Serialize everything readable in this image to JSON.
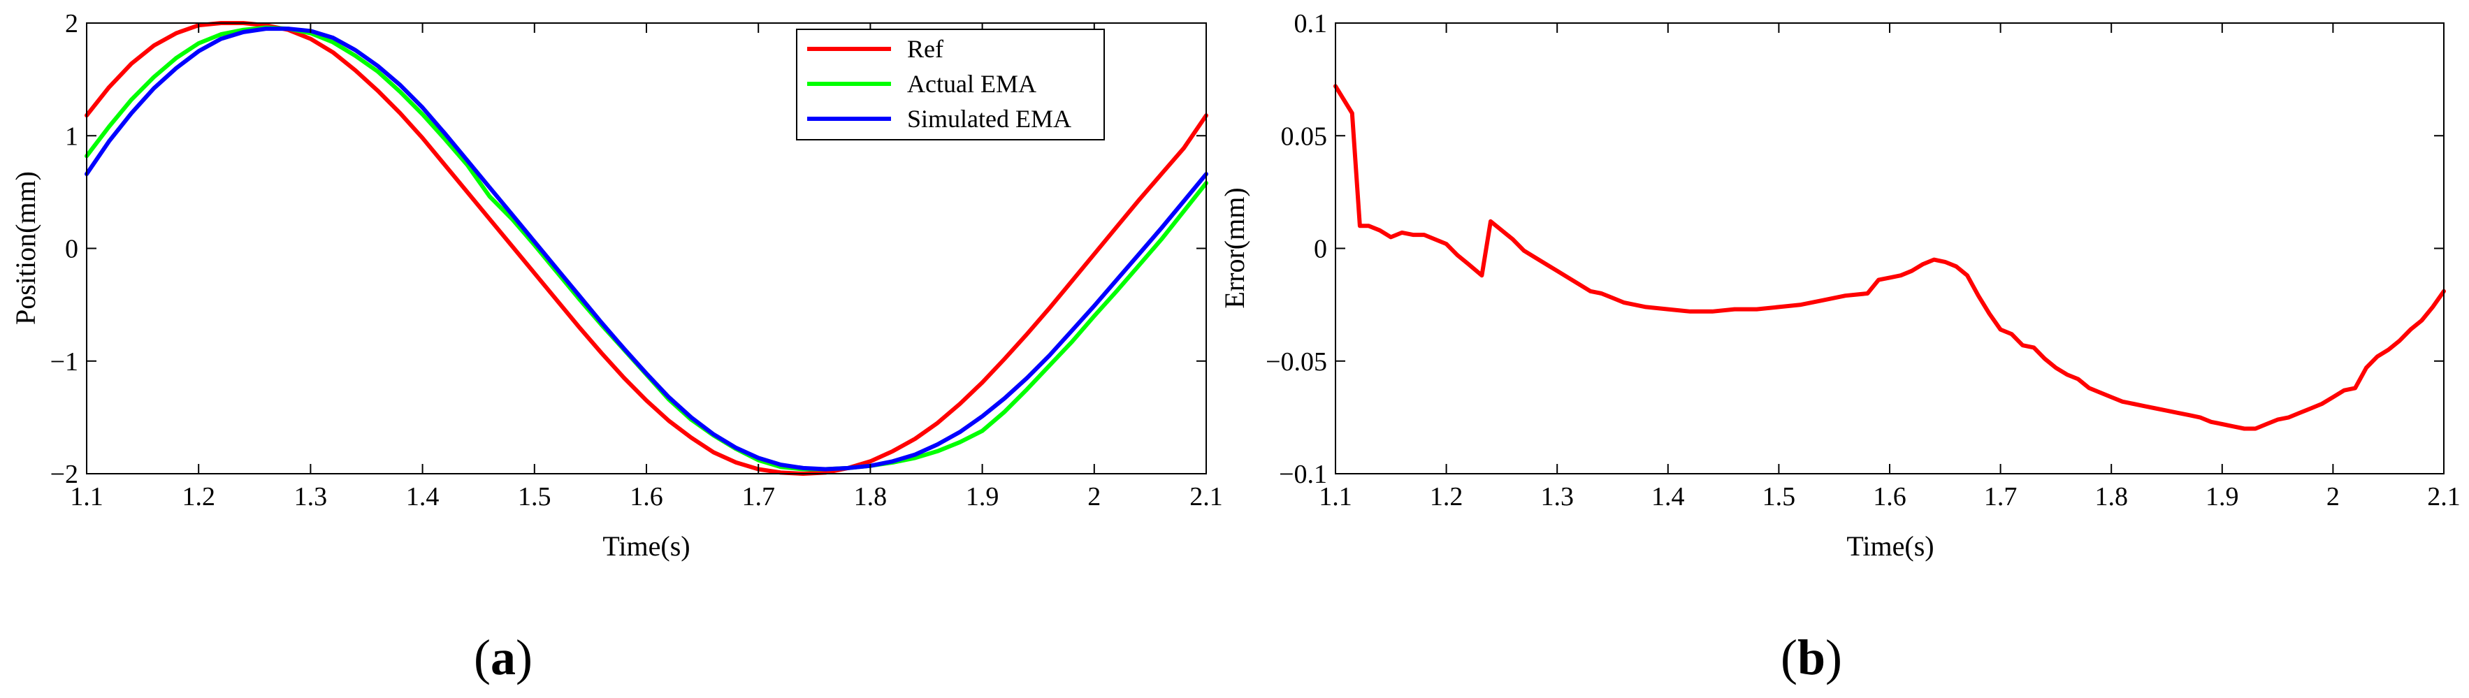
{
  "chart_data": [
    {
      "id": "a",
      "type": "line",
      "panel_label": {
        "open": "(",
        "letter": "a",
        "close": ")"
      },
      "title": "",
      "xlabel": "Time(s)",
      "ylabel": "Position(mm)",
      "xlim": [
        1.1,
        2.1
      ],
      "ylim": [
        -2,
        2
      ],
      "xticks": [
        1.1,
        1.2,
        1.3,
        1.4,
        1.5,
        1.6,
        1.7,
        1.8,
        1.9,
        2,
        2.1
      ],
      "xtick_labels": [
        "1.1",
        "1.2",
        "1.3",
        "1.4",
        "1.5",
        "1.6",
        "1.7",
        "1.8",
        "1.9",
        "2",
        "2.1"
      ],
      "yticks": [
        -2,
        -1,
        0,
        1,
        2
      ],
      "ytick_labels": [
        "−2",
        "−1",
        "0",
        "1",
        "2"
      ],
      "grid": false,
      "legend_position": "top-right",
      "series": [
        {
          "name": "Ref",
          "color": "#ff0000",
          "points": [
            [
              1.1,
              1.18
            ],
            [
              1.12,
              1.43
            ],
            [
              1.14,
              1.64
            ],
            [
              1.16,
              1.8
            ],
            [
              1.18,
              1.91
            ],
            [
              1.2,
              1.98
            ],
            [
              1.22,
              2.0
            ],
            [
              1.24,
              2.0
            ],
            [
              1.26,
              1.98
            ],
            [
              1.28,
              1.94
            ],
            [
              1.3,
              1.86
            ],
            [
              1.32,
              1.74
            ],
            [
              1.34,
              1.58
            ],
            [
              1.36,
              1.4
            ],
            [
              1.38,
              1.2
            ],
            [
              1.4,
              0.98
            ],
            [
              1.42,
              0.74
            ],
            [
              1.44,
              0.5
            ],
            [
              1.46,
              0.26
            ],
            [
              1.48,
              0.02
            ],
            [
              1.5,
              -0.22
            ],
            [
              1.52,
              -0.46
            ],
            [
              1.54,
              -0.7
            ],
            [
              1.56,
              -0.93
            ],
            [
              1.58,
              -1.15
            ],
            [
              1.6,
              -1.35
            ],
            [
              1.62,
              -1.53
            ],
            [
              1.64,
              -1.68
            ],
            [
              1.66,
              -1.81
            ],
            [
              1.68,
              -1.9
            ],
            [
              1.7,
              -1.96
            ],
            [
              1.72,
              -1.99
            ],
            [
              1.74,
              -2.0
            ],
            [
              1.76,
              -1.99
            ],
            [
              1.78,
              -1.95
            ],
            [
              1.8,
              -1.89
            ],
            [
              1.82,
              -1.8
            ],
            [
              1.84,
              -1.69
            ],
            [
              1.86,
              -1.55
            ],
            [
              1.88,
              -1.38
            ],
            [
              1.9,
              -1.19
            ],
            [
              1.92,
              -0.98
            ],
            [
              1.94,
              -0.76
            ],
            [
              1.96,
              -0.53
            ],
            [
              1.98,
              -0.29
            ],
            [
              2.0,
              -0.05
            ],
            [
              2.02,
              0.19
            ],
            [
              2.04,
              0.43
            ],
            [
              2.06,
              0.66
            ],
            [
              2.08,
              0.89
            ],
            [
              2.1,
              1.18
            ]
          ]
        },
        {
          "name": "Actual EMA",
          "color": "#00ff00",
          "points": [
            [
              1.1,
              0.82
            ],
            [
              1.12,
              1.08
            ],
            [
              1.14,
              1.32
            ],
            [
              1.16,
              1.52
            ],
            [
              1.18,
              1.69
            ],
            [
              1.2,
              1.82
            ],
            [
              1.22,
              1.9
            ],
            [
              1.24,
              1.94
            ],
            [
              1.26,
              1.96
            ],
            [
              1.28,
              1.95
            ],
            [
              1.3,
              1.91
            ],
            [
              1.32,
              1.83
            ],
            [
              1.34,
              1.71
            ],
            [
              1.36,
              1.57
            ],
            [
              1.38,
              1.39
            ],
            [
              1.4,
              1.19
            ],
            [
              1.42,
              0.97
            ],
            [
              1.44,
              0.74
            ],
            [
              1.46,
              0.46
            ],
            [
              1.48,
              0.26
            ],
            [
              1.5,
              0.03
            ],
            [
              1.52,
              -0.21
            ],
            [
              1.54,
              -0.45
            ],
            [
              1.56,
              -0.68
            ],
            [
              1.58,
              -0.9
            ],
            [
              1.6,
              -1.12
            ],
            [
              1.62,
              -1.34
            ],
            [
              1.64,
              -1.52
            ],
            [
              1.66,
              -1.66
            ],
            [
              1.68,
              -1.78
            ],
            [
              1.7,
              -1.88
            ],
            [
              1.72,
              -1.94
            ],
            [
              1.74,
              -1.96
            ],
            [
              1.76,
              -1.96
            ],
            [
              1.78,
              -1.95
            ],
            [
              1.8,
              -1.93
            ],
            [
              1.82,
              -1.9
            ],
            [
              1.84,
              -1.86
            ],
            [
              1.86,
              -1.8
            ],
            [
              1.88,
              -1.72
            ],
            [
              1.9,
              -1.62
            ],
            [
              1.92,
              -1.45
            ],
            [
              1.94,
              -1.25
            ],
            [
              1.96,
              -1.04
            ],
            [
              1.98,
              -0.83
            ],
            [
              2.0,
              -0.6
            ],
            [
              2.02,
              -0.38
            ],
            [
              2.04,
              -0.15
            ],
            [
              2.06,
              0.08
            ],
            [
              2.08,
              0.33
            ],
            [
              2.1,
              0.58
            ]
          ]
        },
        {
          "name": "Simulated EMA",
          "color": "#0000ff",
          "points": [
            [
              1.1,
              0.66
            ],
            [
              1.12,
              0.95
            ],
            [
              1.14,
              1.2
            ],
            [
              1.16,
              1.42
            ],
            [
              1.18,
              1.6
            ],
            [
              1.2,
              1.75
            ],
            [
              1.22,
              1.86
            ],
            [
              1.24,
              1.92
            ],
            [
              1.26,
              1.95
            ],
            [
              1.28,
              1.95
            ],
            [
              1.3,
              1.93
            ],
            [
              1.32,
              1.87
            ],
            [
              1.34,
              1.76
            ],
            [
              1.36,
              1.62
            ],
            [
              1.38,
              1.45
            ],
            [
              1.4,
              1.25
            ],
            [
              1.42,
              1.02
            ],
            [
              1.44,
              0.78
            ],
            [
              1.46,
              0.54
            ],
            [
              1.48,
              0.3
            ],
            [
              1.5,
              0.06
            ],
            [
              1.52,
              -0.18
            ],
            [
              1.54,
              -0.42
            ],
            [
              1.56,
              -0.66
            ],
            [
              1.58,
              -0.89
            ],
            [
              1.6,
              -1.11
            ],
            [
              1.62,
              -1.32
            ],
            [
              1.64,
              -1.5
            ],
            [
              1.66,
              -1.65
            ],
            [
              1.68,
              -1.77
            ],
            [
              1.7,
              -1.86
            ],
            [
              1.72,
              -1.92
            ],
            [
              1.74,
              -1.95
            ],
            [
              1.76,
              -1.96
            ],
            [
              1.78,
              -1.95
            ],
            [
              1.8,
              -1.93
            ],
            [
              1.82,
              -1.89
            ],
            [
              1.84,
              -1.83
            ],
            [
              1.86,
              -1.74
            ],
            [
              1.88,
              -1.63
            ],
            [
              1.9,
              -1.49
            ],
            [
              1.92,
              -1.33
            ],
            [
              1.94,
              -1.15
            ],
            [
              1.96,
              -0.95
            ],
            [
              1.98,
              -0.73
            ],
            [
              2.0,
              -0.51
            ],
            [
              2.02,
              -0.28
            ],
            [
              2.04,
              -0.05
            ],
            [
              2.06,
              0.18
            ],
            [
              2.08,
              0.42
            ],
            [
              2.1,
              0.66
            ]
          ]
        }
      ]
    },
    {
      "id": "b",
      "type": "line",
      "panel_label": {
        "open": "(",
        "letter": "b",
        "close": ")"
      },
      "title": "",
      "xlabel": "Time(s)",
      "ylabel": "Error(mm)",
      "xlim": [
        1.1,
        2.1
      ],
      "ylim": [
        -0.1,
        0.1
      ],
      "xticks": [
        1.1,
        1.2,
        1.3,
        1.4,
        1.5,
        1.6,
        1.7,
        1.8,
        1.9,
        2,
        2.1
      ],
      "xtick_labels": [
        "1.1",
        "1.2",
        "1.3",
        "1.4",
        "1.5",
        "1.6",
        "1.7",
        "1.8",
        "1.9",
        "2",
        "2.1"
      ],
      "yticks": [
        -0.1,
        -0.05,
        0,
        0.05,
        0.1
      ],
      "ytick_labels": [
        "−0.1",
        "−0.05",
        "0",
        "0.05",
        "0.1"
      ],
      "grid": false,
      "legend_position": "none",
      "series": [
        {
          "name": "Error",
          "color": "#ff0000",
          "points": [
            [
              1.1,
              0.072
            ],
            [
              1.115,
              0.06
            ],
            [
              1.122,
              0.01
            ],
            [
              1.13,
              0.01
            ],
            [
              1.14,
              0.008
            ],
            [
              1.15,
              0.005
            ],
            [
              1.16,
              0.007
            ],
            [
              1.17,
              0.006
            ],
            [
              1.18,
              0.006
            ],
            [
              1.19,
              0.004
            ],
            [
              1.2,
              0.002
            ],
            [
              1.21,
              -0.003
            ],
            [
              1.22,
              -0.007
            ],
            [
              1.232,
              -0.012
            ],
            [
              1.24,
              0.012
            ],
            [
              1.25,
              0.008
            ],
            [
              1.26,
              0.004
            ],
            [
              1.27,
              -0.001
            ],
            [
              1.28,
              -0.004
            ],
            [
              1.29,
              -0.007
            ],
            [
              1.3,
              -0.01
            ],
            [
              1.31,
              -0.013
            ],
            [
              1.32,
              -0.016
            ],
            [
              1.33,
              -0.019
            ],
            [
              1.34,
              -0.02
            ],
            [
              1.35,
              -0.022
            ],
            [
              1.36,
              -0.024
            ],
            [
              1.38,
              -0.026
            ],
            [
              1.4,
              -0.027
            ],
            [
              1.42,
              -0.028
            ],
            [
              1.44,
              -0.028
            ],
            [
              1.46,
              -0.027
            ],
            [
              1.48,
              -0.027
            ],
            [
              1.5,
              -0.026
            ],
            [
              1.52,
              -0.025
            ],
            [
              1.54,
              -0.023
            ],
            [
              1.56,
              -0.021
            ],
            [
              1.58,
              -0.02
            ],
            [
              1.59,
              -0.014
            ],
            [
              1.6,
              -0.013
            ],
            [
              1.61,
              -0.012
            ],
            [
              1.62,
              -0.01
            ],
            [
              1.63,
              -0.007
            ],
            [
              1.64,
              -0.005
            ],
            [
              1.65,
              -0.006
            ],
            [
              1.66,
              -0.008
            ],
            [
              1.67,
              -0.012
            ],
            [
              1.68,
              -0.021
            ],
            [
              1.69,
              -0.029
            ],
            [
              1.7,
              -0.036
            ],
            [
              1.71,
              -0.038
            ],
            [
              1.72,
              -0.043
            ],
            [
              1.73,
              -0.044
            ],
            [
              1.74,
              -0.049
            ],
            [
              1.75,
              -0.053
            ],
            [
              1.76,
              -0.056
            ],
            [
              1.77,
              -0.058
            ],
            [
              1.78,
              -0.062
            ],
            [
              1.79,
              -0.064
            ],
            [
              1.8,
              -0.066
            ],
            [
              1.81,
              -0.068
            ],
            [
              1.82,
              -0.069
            ],
            [
              1.83,
              -0.07
            ],
            [
              1.84,
              -0.071
            ],
            [
              1.85,
              -0.072
            ],
            [
              1.86,
              -0.073
            ],
            [
              1.87,
              -0.074
            ],
            [
              1.88,
              -0.075
            ],
            [
              1.89,
              -0.077
            ],
            [
              1.9,
              -0.078
            ],
            [
              1.91,
              -0.079
            ],
            [
              1.92,
              -0.08
            ],
            [
              1.93,
              -0.08
            ],
            [
              1.94,
              -0.078
            ],
            [
              1.95,
              -0.076
            ],
            [
              1.96,
              -0.075
            ],
            [
              1.97,
              -0.073
            ],
            [
              1.98,
              -0.071
            ],
            [
              1.99,
              -0.069
            ],
            [
              2.0,
              -0.066
            ],
            [
              2.01,
              -0.063
            ],
            [
              2.02,
              -0.062
            ],
            [
              2.03,
              -0.053
            ],
            [
              2.04,
              -0.048
            ],
            [
              2.05,
              -0.045
            ],
            [
              2.06,
              -0.041
            ],
            [
              2.07,
              -0.036
            ],
            [
              2.08,
              -0.032
            ],
            [
              2.09,
              -0.026
            ],
            [
              2.1,
              -0.019
            ]
          ]
        }
      ]
    }
  ]
}
